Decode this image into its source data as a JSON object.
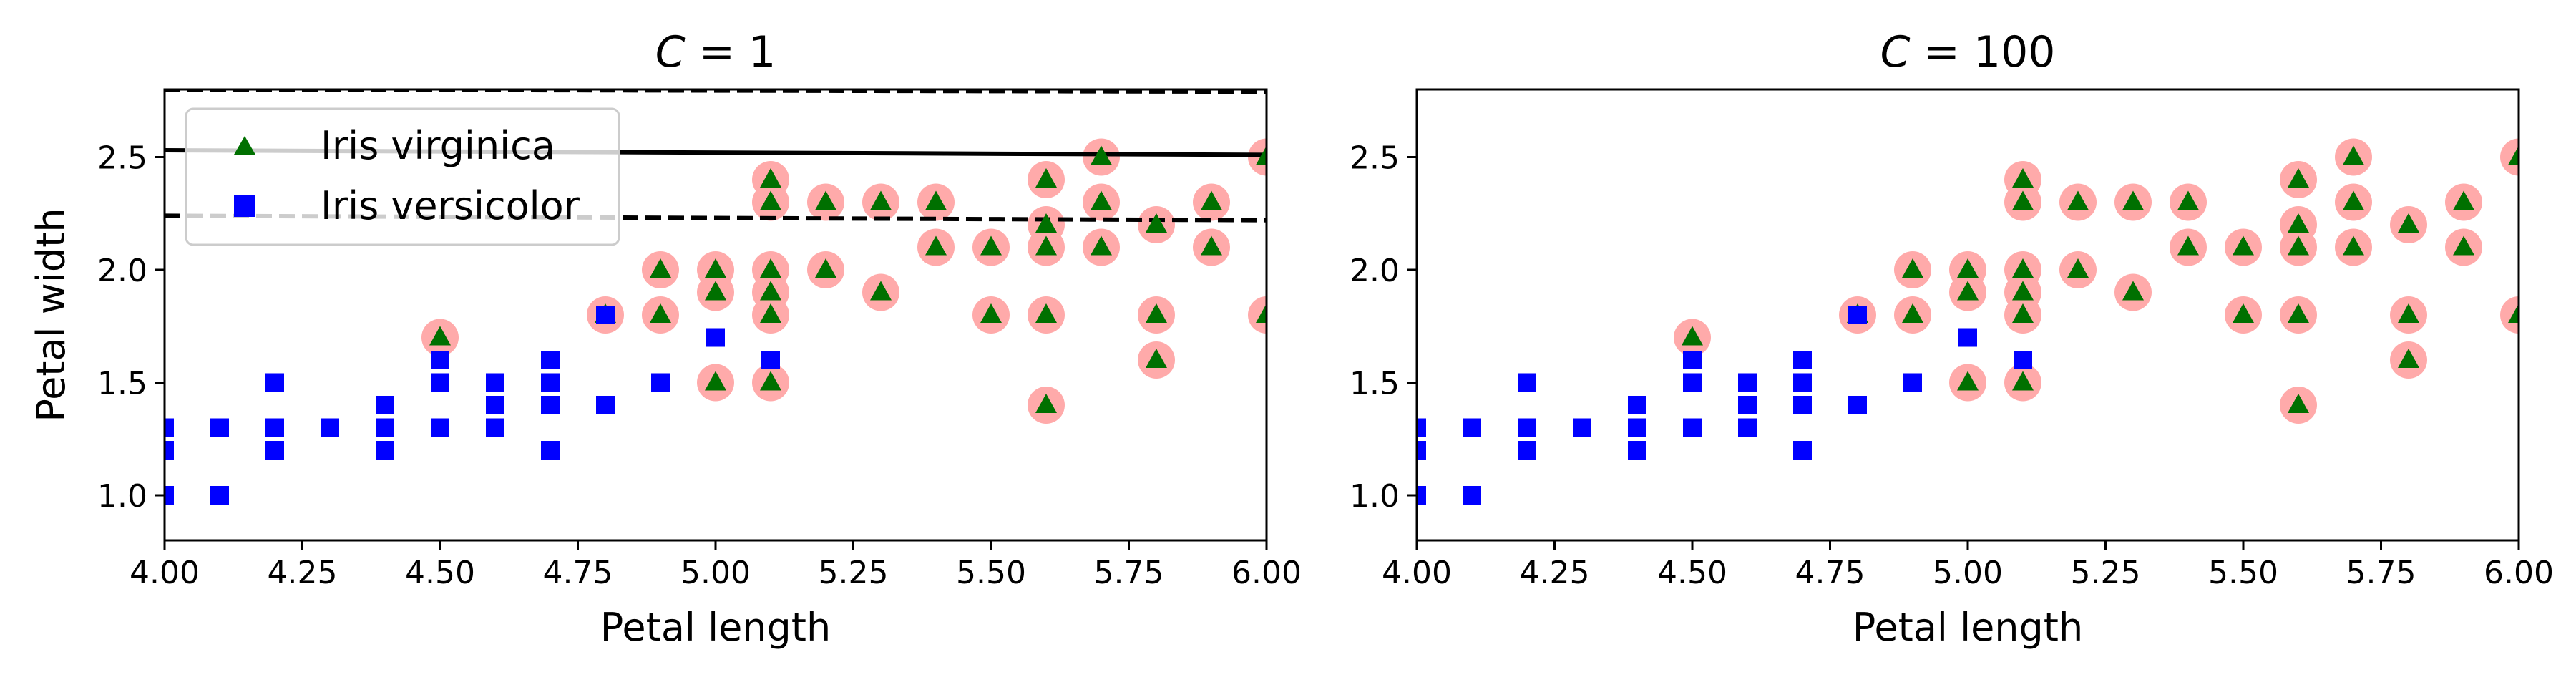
{
  "chart_data": [
    {
      "type": "scatter",
      "title": "C = 1",
      "title_var": "C",
      "title_value": "1",
      "xlabel": "Petal length",
      "ylabel": "Petal width",
      "xlim": [
        4.0,
        6.0
      ],
      "ylim": [
        0.8,
        2.8
      ],
      "xticks": [
        "4.00",
        "4.25",
        "4.50",
        "4.75",
        "5.00",
        "5.25",
        "5.50",
        "5.75",
        "6.00"
      ],
      "yticks": [
        "1.0",
        "1.5",
        "2.0",
        "2.5"
      ],
      "grid": false,
      "legend_position": "top-left",
      "legend": [
        {
          "label": "Iris virginica",
          "marker": "triangle",
          "color": "#007000"
        },
        {
          "label": "Iris versicolor",
          "marker": "square",
          "color": "#0000ff"
        }
      ],
      "lines": [
        {
          "style": "dashed",
          "color": "#000000",
          "x": [
            4.0,
            6.0
          ],
          "y": [
            2.8,
            2.79
          ]
        },
        {
          "style": "solid",
          "color": "#000000",
          "x": [
            4.0,
            6.0
          ],
          "y": [
            2.53,
            2.51
          ]
        },
        {
          "style": "dashed",
          "color": "#000000",
          "x": [
            4.0,
            6.0
          ],
          "y": [
            2.24,
            2.22
          ]
        }
      ],
      "series": [
        {
          "name": "Iris virginica",
          "marker": "triangle",
          "color": "#007000",
          "points": [
            [
              4.5,
              1.7
            ],
            [
              4.8,
              1.8
            ],
            [
              4.9,
              1.8
            ],
            [
              4.9,
              2.0
            ],
            [
              5.0,
              1.5
            ],
            [
              5.0,
              1.9
            ],
            [
              5.0,
              2.0
            ],
            [
              5.1,
              1.5
            ],
            [
              5.1,
              1.8
            ],
            [
              5.1,
              1.9
            ],
            [
              5.1,
              2.0
            ],
            [
              5.1,
              2.3
            ],
            [
              5.1,
              2.4
            ],
            [
              5.2,
              2.0
            ],
            [
              5.2,
              2.3
            ],
            [
              5.3,
              1.9
            ],
            [
              5.3,
              2.3
            ],
            [
              5.4,
              2.1
            ],
            [
              5.4,
              2.3
            ],
            [
              5.5,
              1.8
            ],
            [
              5.5,
              2.1
            ],
            [
              5.6,
              1.4
            ],
            [
              5.6,
              1.8
            ],
            [
              5.6,
              2.1
            ],
            [
              5.6,
              2.2
            ],
            [
              5.6,
              2.4
            ],
            [
              5.7,
              2.1
            ],
            [
              5.7,
              2.3
            ],
            [
              5.7,
              2.5
            ],
            [
              5.8,
              1.6
            ],
            [
              5.8,
              1.8
            ],
            [
              5.8,
              2.2
            ],
            [
              5.9,
              2.1
            ],
            [
              5.9,
              2.3
            ],
            [
              6.0,
              1.8
            ],
            [
              6.0,
              2.5
            ]
          ]
        },
        {
          "name": "Iris versicolor",
          "marker": "square",
          "color": "#0000ff",
          "points": [
            [
              4.0,
              1.0
            ],
            [
              4.0,
              1.2
            ],
            [
              4.0,
              1.3
            ],
            [
              4.1,
              1.0
            ],
            [
              4.1,
              1.3
            ],
            [
              4.2,
              1.2
            ],
            [
              4.2,
              1.3
            ],
            [
              4.2,
              1.5
            ],
            [
              4.3,
              1.3
            ],
            [
              4.4,
              1.2
            ],
            [
              4.4,
              1.3
            ],
            [
              4.4,
              1.4
            ],
            [
              4.5,
              1.3
            ],
            [
              4.5,
              1.5
            ],
            [
              4.5,
              1.6
            ],
            [
              4.6,
              1.3
            ],
            [
              4.6,
              1.4
            ],
            [
              4.6,
              1.5
            ],
            [
              4.7,
              1.2
            ],
            [
              4.7,
              1.4
            ],
            [
              4.7,
              1.5
            ],
            [
              4.7,
              1.6
            ],
            [
              4.8,
              1.4
            ],
            [
              4.8,
              1.8
            ],
            [
              4.9,
              1.5
            ],
            [
              5.0,
              1.7
            ],
            [
              5.1,
              1.6
            ]
          ]
        }
      ],
      "support_vectors": {
        "color": "#ffaaaa",
        "points": [
          [
            4.5,
            1.7
          ],
          [
            4.8,
            1.8
          ],
          [
            4.9,
            1.8
          ],
          [
            4.9,
            2.0
          ],
          [
            5.0,
            1.5
          ],
          [
            5.0,
            1.9
          ],
          [
            5.0,
            2.0
          ],
          [
            5.1,
            1.5
          ],
          [
            5.1,
            1.8
          ],
          [
            5.1,
            1.9
          ],
          [
            5.1,
            2.0
          ],
          [
            5.1,
            2.3
          ],
          [
            5.1,
            2.4
          ],
          [
            5.2,
            2.0
          ],
          [
            5.2,
            2.3
          ],
          [
            5.3,
            1.9
          ],
          [
            5.3,
            2.3
          ],
          [
            5.4,
            2.1
          ],
          [
            5.4,
            2.3
          ],
          [
            5.5,
            1.8
          ],
          [
            5.5,
            2.1
          ],
          [
            5.6,
            1.4
          ],
          [
            5.6,
            1.8
          ],
          [
            5.6,
            2.1
          ],
          [
            5.6,
            2.2
          ],
          [
            5.6,
            2.4
          ],
          [
            5.7,
            2.1
          ],
          [
            5.7,
            2.3
          ],
          [
            5.7,
            2.5
          ],
          [
            5.8,
            1.6
          ],
          [
            5.8,
            1.8
          ],
          [
            5.8,
            2.2
          ],
          [
            5.9,
            2.1
          ],
          [
            5.9,
            2.3
          ],
          [
            6.0,
            1.8
          ],
          [
            6.0,
            2.5
          ]
        ]
      }
    },
    {
      "type": "scatter",
      "title": "C = 100",
      "title_var": "C",
      "title_value": "100",
      "xlabel": "Petal length",
      "ylabel": "",
      "xlim": [
        4.0,
        6.0
      ],
      "ylim": [
        0.8,
        2.8
      ],
      "xticks": [
        "4.00",
        "4.25",
        "4.50",
        "4.75",
        "5.00",
        "5.25",
        "5.50",
        "5.75",
        "6.00"
      ],
      "yticks": [
        "1.0",
        "1.5",
        "2.0",
        "2.5"
      ],
      "grid": false,
      "legend": [],
      "lines": [],
      "series": [
        {
          "name": "Iris virginica",
          "marker": "triangle",
          "color": "#007000",
          "points": [
            [
              4.5,
              1.7
            ],
            [
              4.8,
              1.8
            ],
            [
              4.9,
              1.8
            ],
            [
              4.9,
              2.0
            ],
            [
              5.0,
              1.5
            ],
            [
              5.0,
              1.9
            ],
            [
              5.0,
              2.0
            ],
            [
              5.1,
              1.5
            ],
            [
              5.1,
              1.8
            ],
            [
              5.1,
              1.9
            ],
            [
              5.1,
              2.0
            ],
            [
              5.1,
              2.3
            ],
            [
              5.1,
              2.4
            ],
            [
              5.2,
              2.0
            ],
            [
              5.2,
              2.3
            ],
            [
              5.3,
              1.9
            ],
            [
              5.3,
              2.3
            ],
            [
              5.4,
              2.1
            ],
            [
              5.4,
              2.3
            ],
            [
              5.5,
              1.8
            ],
            [
              5.5,
              2.1
            ],
            [
              5.6,
              1.4
            ],
            [
              5.6,
              1.8
            ],
            [
              5.6,
              2.1
            ],
            [
              5.6,
              2.2
            ],
            [
              5.6,
              2.4
            ],
            [
              5.7,
              2.1
            ],
            [
              5.7,
              2.3
            ],
            [
              5.7,
              2.5
            ],
            [
              5.8,
              1.6
            ],
            [
              5.8,
              1.8
            ],
            [
              5.8,
              2.2
            ],
            [
              5.9,
              2.1
            ],
            [
              5.9,
              2.3
            ],
            [
              6.0,
              1.8
            ],
            [
              6.0,
              2.5
            ]
          ]
        },
        {
          "name": "Iris versicolor",
          "marker": "square",
          "color": "#0000ff",
          "points": [
            [
              4.0,
              1.0
            ],
            [
              4.0,
              1.2
            ],
            [
              4.0,
              1.3
            ],
            [
              4.1,
              1.0
            ],
            [
              4.1,
              1.3
            ],
            [
              4.2,
              1.2
            ],
            [
              4.2,
              1.3
            ],
            [
              4.2,
              1.5
            ],
            [
              4.3,
              1.3
            ],
            [
              4.4,
              1.2
            ],
            [
              4.4,
              1.3
            ],
            [
              4.4,
              1.4
            ],
            [
              4.5,
              1.3
            ],
            [
              4.5,
              1.5
            ],
            [
              4.5,
              1.6
            ],
            [
              4.6,
              1.3
            ],
            [
              4.6,
              1.4
            ],
            [
              4.6,
              1.5
            ],
            [
              4.7,
              1.2
            ],
            [
              4.7,
              1.4
            ],
            [
              4.7,
              1.5
            ],
            [
              4.7,
              1.6
            ],
            [
              4.8,
              1.4
            ],
            [
              4.8,
              1.8
            ],
            [
              4.9,
              1.5
            ],
            [
              5.0,
              1.7
            ],
            [
              5.1,
              1.6
            ]
          ]
        }
      ],
      "support_vectors": {
        "color": "#ffaaaa",
        "points": [
          [
            4.5,
            1.7
          ],
          [
            4.8,
            1.8
          ],
          [
            4.9,
            1.8
          ],
          [
            4.9,
            2.0
          ],
          [
            5.0,
            1.5
          ],
          [
            5.0,
            1.9
          ],
          [
            5.0,
            2.0
          ],
          [
            5.1,
            1.5
          ],
          [
            5.1,
            1.8
          ],
          [
            5.1,
            1.9
          ],
          [
            5.1,
            2.0
          ],
          [
            5.1,
            2.3
          ],
          [
            5.1,
            2.4
          ],
          [
            5.2,
            2.0
          ],
          [
            5.2,
            2.3
          ],
          [
            5.3,
            1.9
          ],
          [
            5.3,
            2.3
          ],
          [
            5.4,
            2.1
          ],
          [
            5.4,
            2.3
          ],
          [
            5.5,
            1.8
          ],
          [
            5.5,
            2.1
          ],
          [
            5.6,
            1.4
          ],
          [
            5.6,
            1.8
          ],
          [
            5.6,
            2.1
          ],
          [
            5.6,
            2.2
          ],
          [
            5.6,
            2.4
          ],
          [
            5.7,
            2.1
          ],
          [
            5.7,
            2.3
          ],
          [
            5.7,
            2.5
          ],
          [
            5.8,
            1.6
          ],
          [
            5.8,
            1.8
          ],
          [
            5.8,
            2.2
          ],
          [
            5.9,
            2.1
          ],
          [
            5.9,
            2.3
          ],
          [
            6.0,
            1.8
          ],
          [
            6.0,
            2.5
          ]
        ]
      }
    }
  ]
}
